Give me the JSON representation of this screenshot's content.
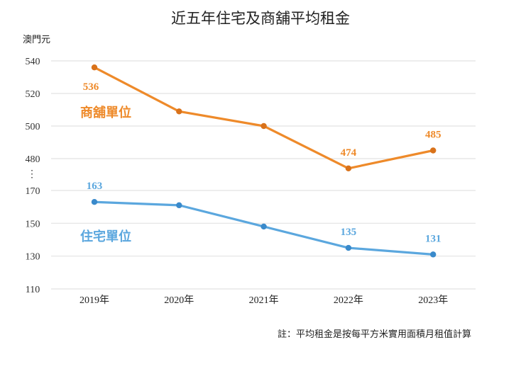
{
  "chart_data": {
    "type": "line",
    "title": "近五年住宅及商舖平均租金",
    "ylabel": "澳門元",
    "xlabel": "",
    "categories": [
      "2019年",
      "2020年",
      "2021年",
      "2022年",
      "2023年"
    ],
    "axis_break": true,
    "axis_break_symbol": "⋮",
    "y_segments": [
      {
        "name": "upper",
        "ylim": [
          480,
          540
        ],
        "ticks": [
          480,
          500,
          520,
          540
        ]
      },
      {
        "name": "lower",
        "ylim": [
          110,
          170
        ],
        "ticks": [
          110,
          130,
          150,
          170
        ]
      }
    ],
    "grid": true,
    "series": [
      {
        "name": "商舖單位",
        "segment": "upper",
        "color": "#EE8A2A",
        "marker_color": "#D9721A",
        "values": [
          536,
          509,
          500,
          474,
          485
        ],
        "data_labels": {
          "0": "536",
          "3": "474",
          "4": "485"
        }
      },
      {
        "name": "住宅單位",
        "segment": "lower",
        "color": "#5BA7DE",
        "marker_color": "#3A8ACB",
        "values": [
          163,
          161,
          148,
          135,
          131
        ],
        "data_labels": {
          "0": "163",
          "3": "135",
          "4": "131"
        }
      }
    ],
    "note": "註：平均租金是按每平方米實用面積月租值計算"
  }
}
